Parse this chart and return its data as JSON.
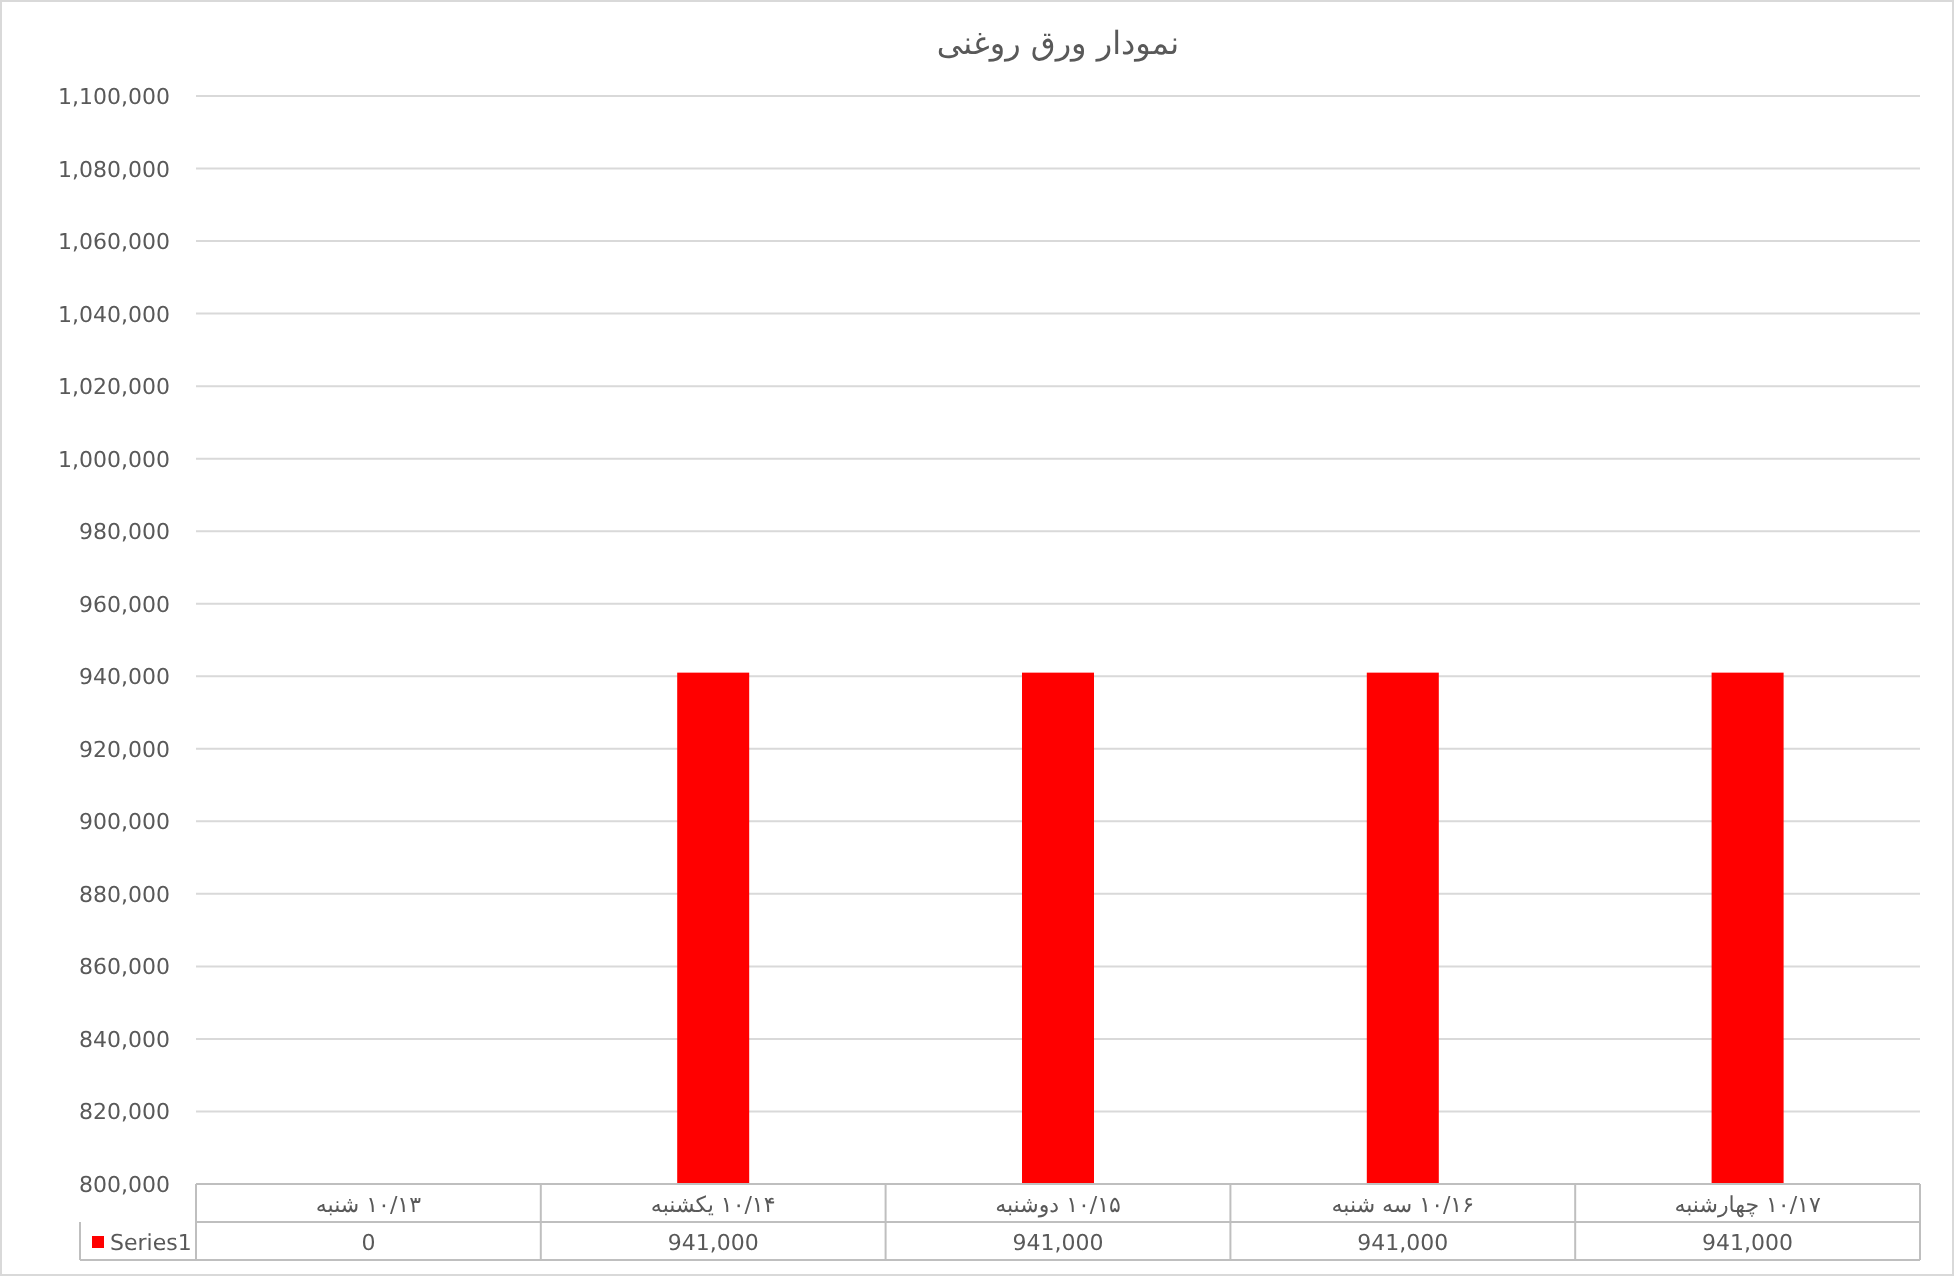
{
  "chart_data": {
    "type": "bar",
    "title": "نمودار ورق روغنی",
    "categories": [
      "۱۰/۱۳ شنبه",
      "۱۰/۱۴ یکشنبه",
      "۱۰/۱۵ دوشنبه",
      "۱۰/۱۶ سه شنبه",
      "۱۰/۱۷ چهارشنبه"
    ],
    "series": [
      {
        "name": "Series1",
        "color": "#ff0000",
        "values": [
          null,
          941000,
          941000,
          941000,
          941000
        ],
        "value_labels": [
          "0",
          "941,000",
          "941,000",
          "941,000",
          "941,000"
        ]
      }
    ],
    "legend": "bottom",
    "grid": "y",
    "ylim": [
      800000,
      1100000
    ],
    "yticks": [
      {
        "value": 800000,
        "label": "800,000"
      },
      {
        "value": 820000,
        "label": "820,000"
      },
      {
        "value": 840000,
        "label": "840,000"
      },
      {
        "value": 860000,
        "label": "860,000"
      },
      {
        "value": 880000,
        "label": "880,000"
      },
      {
        "value": 900000,
        "label": "900,000"
      },
      {
        "value": 920000,
        "label": "920,000"
      },
      {
        "value": 940000,
        "label": "940,000"
      },
      {
        "value": 960000,
        "label": "960,000"
      },
      {
        "value": 980000,
        "label": "980,000"
      },
      {
        "value": 1000000,
        "label": "1,000,000"
      },
      {
        "value": 1020000,
        "label": "1,020,000"
      },
      {
        "value": 1040000,
        "label": "1,040,000"
      },
      {
        "value": 1060000,
        "label": "1,060,000"
      },
      {
        "value": 1080000,
        "label": "1,080,000"
      },
      {
        "value": 1100000,
        "label": "1,100,000"
      }
    ]
  }
}
